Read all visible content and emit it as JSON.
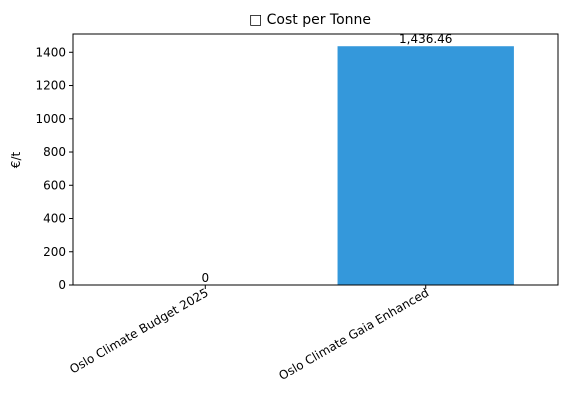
{
  "chart_data": {
    "type": "bar",
    "title": "□ Cost per Tonne",
    "xlabel": "",
    "ylabel": "€/t",
    "categories": [
      "Oslo Climate Budget 2025",
      "Oslo Climate Gaia Enhanced"
    ],
    "values": [
      0,
      1436.46
    ],
    "value_labels": [
      "0",
      "1,436.46"
    ],
    "ylim": [
      0,
      1510
    ],
    "yticks": [
      0,
      200,
      400,
      600,
      800,
      1000,
      1200,
      1400
    ],
    "ytick_labels": [
      "0",
      "200",
      "400",
      "600",
      "800",
      "1000",
      "1200",
      "1400"
    ],
    "bar_color": "#3498db",
    "grid": false,
    "legend": false
  }
}
